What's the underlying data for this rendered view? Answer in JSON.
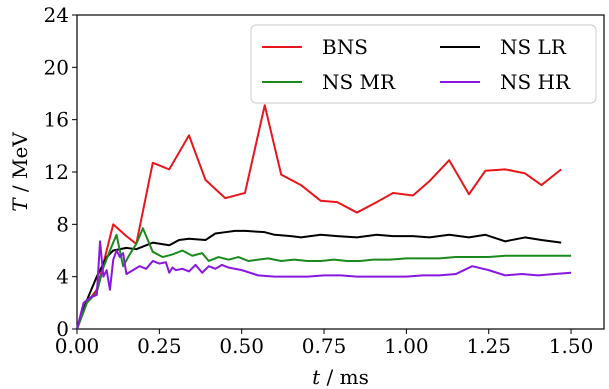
{
  "chart_data": {
    "type": "line",
    "xlabel": "t / ms",
    "xlabel_italic": "t",
    "xlabel_unit": " / ms",
    "ylabel": "T / MeV",
    "ylabel_italic": "T",
    "ylabel_unit": " / MeV",
    "xlim": [
      0.0,
      1.6
    ],
    "ylim": [
      0,
      24
    ],
    "xticks": [
      0.0,
      0.25,
      0.5,
      0.75,
      1.0,
      1.25,
      1.5
    ],
    "xtick_labels": [
      "0.00",
      "0.25",
      "0.50",
      "0.75",
      "1.00",
      "1.25",
      "1.50"
    ],
    "yticks": [
      0,
      4,
      8,
      12,
      16,
      20,
      24
    ],
    "ytick_labels": [
      "0",
      "4",
      "8",
      "12",
      "16",
      "20",
      "24"
    ],
    "grid": false,
    "legend_position": "top-right",
    "legend_columns": 2,
    "series": [
      {
        "name": "BNS",
        "color": "#e8161b",
        "x": [
          0.0,
          0.03,
          0.06,
          0.09,
          0.11,
          0.15,
          0.18,
          0.23,
          0.28,
          0.34,
          0.39,
          0.45,
          0.51,
          0.57,
          0.62,
          0.68,
          0.74,
          0.79,
          0.85,
          0.91,
          0.96,
          1.02,
          1.07,
          1.13,
          1.19,
          1.24,
          1.3,
          1.36,
          1.41,
          1.47
        ],
        "y": [
          0.0,
          2.0,
          3.0,
          6.0,
          8.0,
          7.1,
          6.5,
          12.7,
          12.2,
          14.8,
          11.4,
          10.0,
          10.4,
          17.1,
          11.8,
          11.0,
          9.8,
          9.7,
          8.9,
          9.7,
          10.4,
          10.2,
          11.3,
          12.9,
          10.3,
          12.1,
          12.2,
          11.9,
          11.0,
          12.2
        ]
      },
      {
        "name": "NS LR",
        "color": "#000000",
        "x": [
          0.0,
          0.03,
          0.06,
          0.09,
          0.11,
          0.15,
          0.18,
          0.23,
          0.28,
          0.31,
          0.34,
          0.39,
          0.42,
          0.45,
          0.48,
          0.51,
          0.57,
          0.6,
          0.65,
          0.68,
          0.74,
          0.79,
          0.85,
          0.91,
          0.96,
          1.02,
          1.07,
          1.13,
          1.19,
          1.24,
          1.3,
          1.36,
          1.41,
          1.47
        ],
        "y": [
          0.0,
          2.2,
          4.0,
          5.5,
          6.0,
          6.2,
          6.1,
          6.6,
          6.4,
          6.8,
          6.9,
          6.8,
          7.3,
          7.4,
          7.5,
          7.5,
          7.4,
          7.2,
          7.1,
          7.0,
          7.2,
          7.1,
          7.0,
          7.2,
          7.1,
          7.1,
          7.0,
          7.2,
          7.0,
          7.2,
          6.7,
          7.0,
          6.8,
          6.6
        ]
      },
      {
        "name": "NS MR",
        "color": "#1a8a1e",
        "x": [
          0.0,
          0.03,
          0.06,
          0.08,
          0.1,
          0.12,
          0.14,
          0.16,
          0.18,
          0.2,
          0.23,
          0.26,
          0.29,
          0.32,
          0.35,
          0.38,
          0.4,
          0.43,
          0.46,
          0.49,
          0.52,
          0.55,
          0.58,
          0.62,
          0.66,
          0.7,
          0.74,
          0.78,
          0.82,
          0.86,
          0.9,
          0.95,
          1.0,
          1.05,
          1.1,
          1.15,
          1.2,
          1.25,
          1.3,
          1.35,
          1.4,
          1.45,
          1.5
        ],
        "y": [
          0.0,
          2.0,
          2.8,
          4.7,
          6.0,
          7.2,
          4.8,
          5.7,
          6.5,
          7.7,
          5.9,
          5.5,
          5.7,
          6.0,
          5.6,
          5.8,
          5.2,
          5.5,
          5.3,
          5.5,
          5.2,
          5.3,
          5.4,
          5.2,
          5.3,
          5.2,
          5.2,
          5.3,
          5.2,
          5.2,
          5.3,
          5.3,
          5.4,
          5.4,
          5.4,
          5.5,
          5.5,
          5.5,
          5.6,
          5.6,
          5.6,
          5.6,
          5.6
        ]
      },
      {
        "name": "NS HR",
        "color": "#8a17e0",
        "x": [
          0.0,
          0.02,
          0.04,
          0.06,
          0.07,
          0.08,
          0.09,
          0.1,
          0.11,
          0.12,
          0.13,
          0.14,
          0.15,
          0.17,
          0.19,
          0.21,
          0.23,
          0.25,
          0.27,
          0.28,
          0.29,
          0.3,
          0.32,
          0.34,
          0.36,
          0.38,
          0.4,
          0.42,
          0.44,
          0.46,
          0.5,
          0.55,
          0.6,
          0.65,
          0.7,
          0.75,
          0.8,
          0.85,
          0.9,
          0.95,
          1.0,
          1.05,
          1.1,
          1.15,
          1.2,
          1.25,
          1.3,
          1.35,
          1.4,
          1.45,
          1.5
        ],
        "y": [
          0.0,
          2.0,
          2.4,
          2.6,
          6.7,
          4.0,
          4.5,
          3.0,
          5.3,
          6.0,
          5.5,
          5.8,
          4.2,
          4.5,
          4.8,
          4.6,
          5.2,
          5.0,
          5.1,
          4.3,
          4.7,
          4.5,
          4.6,
          4.4,
          4.9,
          4.3,
          4.8,
          4.6,
          4.9,
          4.7,
          4.5,
          4.1,
          4.0,
          4.0,
          4.0,
          4.1,
          4.1,
          4.0,
          4.0,
          4.0,
          4.0,
          4.1,
          4.1,
          4.2,
          4.8,
          4.5,
          4.1,
          4.2,
          4.1,
          4.2,
          4.3
        ]
      }
    ]
  }
}
